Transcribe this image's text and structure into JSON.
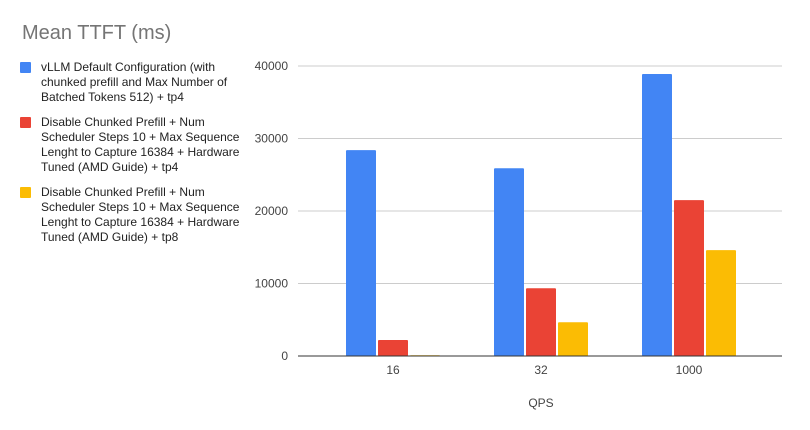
{
  "chart_data": {
    "type": "bar",
    "title": "Mean TTFT (ms)",
    "xlabel": "QPS",
    "ylabel": "",
    "categories": [
      "16",
      "32",
      "1000"
    ],
    "ylim": [
      0,
      40000
    ],
    "yticks": [
      "0",
      "10000",
      "20000",
      "30000",
      "40000"
    ],
    "grid": true,
    "legend_position": "left",
    "series": [
      {
        "name": "vLLM Default Configuration (with chunked prefill and Max Number of Batched Tokens 512) + tp4",
        "color": "#4285f4",
        "values": [
          28400,
          25900,
          38900
        ]
      },
      {
        "name": "Disable Chunked Prefill + Num Scheduler Steps 10 + Max Sequence Lenght to Capture 16384 + Hardware Tuned (AMD Guide) + tp4",
        "color": "#ea4335",
        "values": [
          2200,
          9350,
          21500
        ]
      },
      {
        "name": "Disable Chunked Prefill + Num Scheduler Steps 10 + Max Sequence Lenght to Capture 16384 + Hardware Tuned (AMD Guide) + tp8",
        "color": "#fbbc04",
        "values": [
          100,
          4650,
          14600
        ]
      }
    ]
  }
}
